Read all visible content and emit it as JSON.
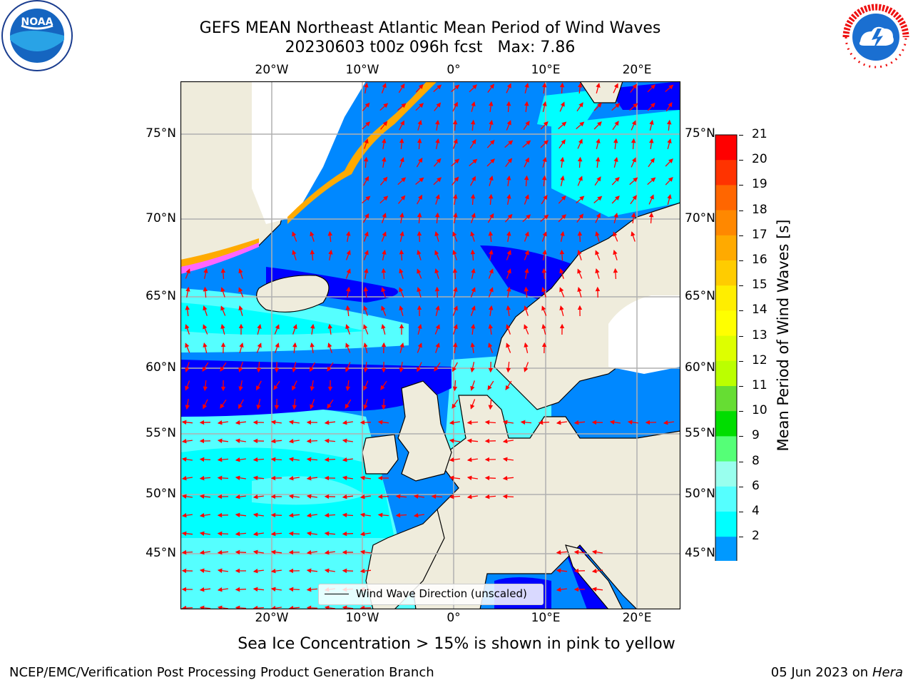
{
  "title": {
    "line1": "GEFS MEAN Northeast Atlantic Mean Period of Wind Waves",
    "line2_run": "20230603 t00z 096h fcst",
    "line2_max": "Max: 7.86"
  },
  "footer": {
    "note": "Sea Ice Concentration > 15% is shown in pink to yellow",
    "credit": "NCEP/EMC/Verification Post Processing Product Generation Branch",
    "date_text": "05 Jun 2023 on",
    "date_machine": "Hera"
  },
  "map": {
    "lat_labels": [
      "75°N",
      "70°N",
      "65°N",
      "60°N",
      "55°N",
      "50°N",
      "45°N"
    ],
    "lon_labels": [
      "20°W",
      "10°W",
      "0°",
      "10°E",
      "20°E"
    ],
    "legend_label": "Wind Wave Direction (unscaled)",
    "colors": {
      "land": "#efecdc",
      "coast": "#000000",
      "grid": "#b0b0b0",
      "arrow": "#ff0000",
      "ice": "#ffffff"
    }
  },
  "colorbar": {
    "title": "Mean Period of Wind Waves [s]",
    "ticks": [
      "21",
      "20",
      "19",
      "18",
      "17",
      "16",
      "15",
      "14",
      "13",
      "12",
      "11",
      "10",
      "9",
      "8",
      "6",
      "4",
      "2"
    ],
    "colors": [
      "#ff0000",
      "#ff3300",
      "#ff6600",
      "#ff8800",
      "#ffaa00",
      "#ffcc00",
      "#ffee00",
      "#ffff00",
      "#ddff00",
      "#bbff00",
      "#66dd33",
      "#00dd00",
      "#55ff77",
      "#99ffee",
      "#55ffff",
      "#00ffff",
      "#0099ff",
      "#0000ff"
    ]
  },
  "logos": {
    "left": "NOAA",
    "right": "NATIONAL WEATHER SERVICE"
  }
}
